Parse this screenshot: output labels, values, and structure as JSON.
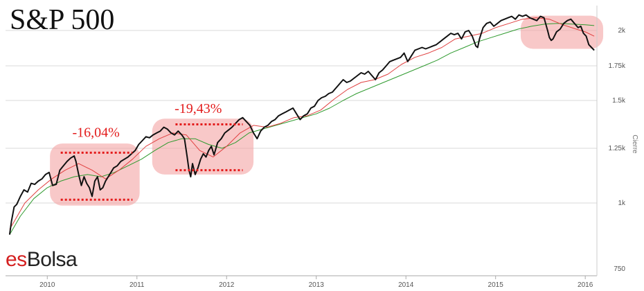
{
  "title": "S&P 500",
  "logo": {
    "part1": "es",
    "part2": "Bolsa"
  },
  "colors": {
    "price": "#111111",
    "ma_long": "#2e9a2e",
    "ma_short": "#e04040",
    "highlight": "#f4a3a3",
    "annotation": "#e31b1b"
  },
  "chart_data": {
    "type": "line",
    "title": "S&P 500",
    "xlabel": "",
    "ylabel": "Cierre",
    "xlim": [
      2009.55,
      2016.13
    ],
    "ylim": [
      750,
      2100
    ],
    "y_ticks": [
      {
        "value": 750,
        "label": "750"
      },
      {
        "value": 1000,
        "label": "1k"
      },
      {
        "value": 1250,
        "label": "1.25k"
      },
      {
        "value": 1500,
        "label": "1.5k"
      },
      {
        "value": 1750,
        "label": "1.75k"
      },
      {
        "value": 2000,
        "label": "2k"
      }
    ],
    "x_ticks": [
      {
        "value": 2010,
        "label": "2010"
      },
      {
        "value": 2011,
        "label": "2011"
      },
      {
        "value": 2012,
        "label": "2012"
      },
      {
        "value": 2013,
        "label": "2013"
      },
      {
        "value": 2014,
        "label": "2014"
      },
      {
        "value": 2015,
        "label": "2015"
      },
      {
        "value": 2016,
        "label": "2016"
      }
    ],
    "grid": "horizontal",
    "series": [
      {
        "key": "price",
        "x": [
          2009.58,
          2009.6,
          2009.63,
          2009.66,
          2009.7,
          2009.74,
          2009.78,
          2009.82,
          2009.86,
          2009.9,
          2009.94,
          2009.98,
          2010.02,
          2010.06,
          2010.1,
          2010.14,
          2010.18,
          2010.22,
          2010.26,
          2010.3,
          2010.32,
          2010.35,
          2010.38,
          2010.41,
          2010.44,
          2010.47,
          2010.5,
          2010.53,
          2010.56,
          2010.59,
          2010.62,
          2010.65,
          2010.68,
          2010.71,
          2010.74,
          2010.78,
          2010.82,
          2010.86,
          2010.9,
          2010.94,
          2010.98,
          2011.02,
          2011.06,
          2011.1,
          2011.14,
          2011.18,
          2011.22,
          2011.26,
          2011.3,
          2011.34,
          2011.38,
          2011.42,
          2011.46,
          2011.5,
          2011.53,
          2011.56,
          2011.58,
          2011.6,
          2011.62,
          2011.65,
          2011.68,
          2011.71,
          2011.74,
          2011.77,
          2011.8,
          2011.83,
          2011.86,
          2011.9,
          2011.94,
          2011.98,
          2012.02,
          2012.06,
          2012.1,
          2012.14,
          2012.18,
          2012.22,
          2012.26,
          2012.3,
          2012.34,
          2012.38,
          2012.42,
          2012.46,
          2012.5,
          2012.54,
          2012.58,
          2012.62,
          2012.66,
          2012.7,
          2012.74,
          2012.78,
          2012.82,
          2012.86,
          2012.9,
          2012.94,
          2012.98,
          2013.02,
          2013.06,
          2013.1,
          2013.14,
          2013.18,
          2013.22,
          2013.26,
          2013.3,
          2013.34,
          2013.38,
          2013.42,
          2013.46,
          2013.5,
          2013.54,
          2013.58,
          2013.62,
          2013.66,
          2013.7,
          2013.74,
          2013.78,
          2013.82,
          2013.86,
          2013.9,
          2013.94,
          2013.98,
          2014.02,
          2014.06,
          2014.1,
          2014.14,
          2014.18,
          2014.22,
          2014.26,
          2014.3,
          2014.34,
          2014.38,
          2014.42,
          2014.46,
          2014.5,
          2014.54,
          2014.58,
          2014.62,
          2014.66,
          2014.7,
          2014.74,
          2014.78,
          2014.8,
          2014.82,
          2014.86,
          2014.9,
          2014.94,
          2014.98,
          2015.02,
          2015.06,
          2015.1,
          2015.14,
          2015.18,
          2015.22,
          2015.26,
          2015.3,
          2015.34,
          2015.38,
          2015.42,
          2015.46,
          2015.5,
          2015.54,
          2015.58,
          2015.6,
          2015.62,
          2015.64,
          2015.68,
          2015.72,
          2015.76,
          2015.8,
          2015.84,
          2015.88,
          2015.92,
          2015.95,
          2015.98,
          2016.01,
          2016.04,
          2016.07,
          2016.1
        ],
        "y": [
          880,
          930,
          985,
          995,
          1030,
          1060,
          1050,
          1090,
          1085,
          1100,
          1110,
          1130,
          1140,
          1080,
          1085,
          1150,
          1170,
          1190,
          1205,
          1215,
          1190,
          1130,
          1080,
          1120,
          1090,
          1070,
          1030,
          1100,
          1120,
          1060,
          1070,
          1100,
          1120,
          1140,
          1160,
          1170,
          1190,
          1200,
          1210,
          1225,
          1240,
          1270,
          1290,
          1310,
          1305,
          1320,
          1330,
          1340,
          1360,
          1350,
          1330,
          1320,
          1340,
          1320,
          1300,
          1210,
          1150,
          1120,
          1180,
          1130,
          1160,
          1200,
          1225,
          1210,
          1240,
          1260,
          1220,
          1280,
          1300,
          1330,
          1345,
          1360,
          1380,
          1400,
          1410,
          1390,
          1370,
          1330,
          1300,
          1340,
          1360,
          1370,
          1390,
          1400,
          1420,
          1430,
          1440,
          1450,
          1460,
          1430,
          1400,
          1420,
          1430,
          1460,
          1470,
          1500,
          1520,
          1530,
          1550,
          1560,
          1590,
          1620,
          1650,
          1630,
          1640,
          1660,
          1680,
          1700,
          1690,
          1710,
          1680,
          1650,
          1700,
          1720,
          1750,
          1780,
          1790,
          1800,
          1810,
          1840,
          1780,
          1820,
          1860,
          1870,
          1880,
          1870,
          1880,
          1890,
          1900,
          1920,
          1940,
          1960,
          1980,
          1970,
          1980,
          1940,
          1990,
          2000,
          1960,
          1890,
          1880,
          1940,
          2020,
          2050,
          2060,
          2030,
          2050,
          2070,
          2080,
          2090,
          2100,
          2080,
          2110,
          2100,
          2110,
          2090,
          2080,
          2070,
          2100,
          2090,
          2000,
          1950,
          1930,
          1940,
          1990,
          2010,
          2050,
          2070,
          2080,
          2050,
          2020,
          2030,
          1980,
          1960,
          1900,
          1880,
          1860
        ]
      },
      {
        "key": "ma_long",
        "x": [
          2009.58,
          2009.7,
          2009.85,
          2010.0,
          2010.15,
          2010.3,
          2010.45,
          2010.6,
          2010.75,
          2010.9,
          2011.05,
          2011.2,
          2011.35,
          2011.5,
          2011.65,
          2011.8,
          2011.95,
          2012.1,
          2012.25,
          2012.4,
          2012.55,
          2012.7,
          2012.85,
          2013.0,
          2013.15,
          2013.3,
          2013.45,
          2013.6,
          2013.75,
          2013.9,
          2014.05,
          2014.2,
          2014.35,
          2014.5,
          2014.65,
          2014.8,
          2014.95,
          2015.1,
          2015.25,
          2015.4,
          2015.55,
          2015.7,
          2015.85,
          2016.0,
          2016.1
        ],
        "y": [
          880,
          950,
          1020,
          1070,
          1100,
          1120,
          1130,
          1120,
          1140,
          1170,
          1200,
          1240,
          1280,
          1300,
          1300,
          1270,
          1250,
          1280,
          1330,
          1350,
          1370,
          1390,
          1410,
          1430,
          1460,
          1500,
          1550,
          1590,
          1630,
          1670,
          1710,
          1750,
          1790,
          1840,
          1880,
          1920,
          1950,
          1980,
          2010,
          2030,
          2045,
          2050,
          2045,
          2040,
          2035
        ]
      },
      {
        "key": "ma_short",
        "x": [
          2009.58,
          2009.75,
          2009.9,
          2010.05,
          2010.2,
          2010.35,
          2010.5,
          2010.65,
          2010.8,
          2010.95,
          2011.1,
          2011.25,
          2011.4,
          2011.55,
          2011.7,
          2011.85,
          2012.0,
          2012.15,
          2012.3,
          2012.45,
          2012.6,
          2012.75,
          2012.9,
          2013.05,
          2013.2,
          2013.35,
          2013.5,
          2013.65,
          2013.8,
          2013.95,
          2014.1,
          2014.25,
          2014.4,
          2014.55,
          2014.7,
          2014.85,
          2015.0,
          2015.15,
          2015.3,
          2015.45,
          2015.6,
          2015.75,
          2015.9,
          2016.0,
          2016.1
        ],
        "y": [
          900,
          1000,
          1060,
          1110,
          1150,
          1180,
          1150,
          1110,
          1150,
          1200,
          1260,
          1300,
          1330,
          1320,
          1240,
          1210,
          1260,
          1330,
          1370,
          1360,
          1380,
          1410,
          1420,
          1450,
          1510,
          1580,
          1630,
          1650,
          1690,
          1760,
          1810,
          1840,
          1880,
          1940,
          1960,
          1980,
          2020,
          2050,
          2080,
          2090,
          2080,
          2040,
          2010,
          1990,
          1960
        ]
      }
    ],
    "highlights": [
      {
        "x0": 2010.03,
        "x1": 2011.03,
        "y0": 990,
        "y1": 1275,
        "label": "-16,04%",
        "label_x": 2010.28,
        "label_y": 1310,
        "line_top_y": 1230,
        "line_bottom_y": 1015,
        "line_x0": 2010.15,
        "line_x1": 2010.95
      },
      {
        "x0": 2011.17,
        "x1": 2012.3,
        "y0": 1130,
        "y1": 1405,
        "label": "-19,43%",
        "label_x": 2011.42,
        "label_y": 1435,
        "line_top_y": 1375,
        "line_bottom_y": 1150,
        "line_x0": 2011.43,
        "line_x1": 2012.18
      },
      {
        "x0": 2015.28,
        "x1": 2016.2,
        "y0": 1870,
        "y1": 2105,
        "label": "",
        "label_x": 0,
        "label_y": 0,
        "line_top_y": 0,
        "line_bottom_y": 0,
        "line_x0": 0,
        "line_x1": 0
      }
    ]
  }
}
